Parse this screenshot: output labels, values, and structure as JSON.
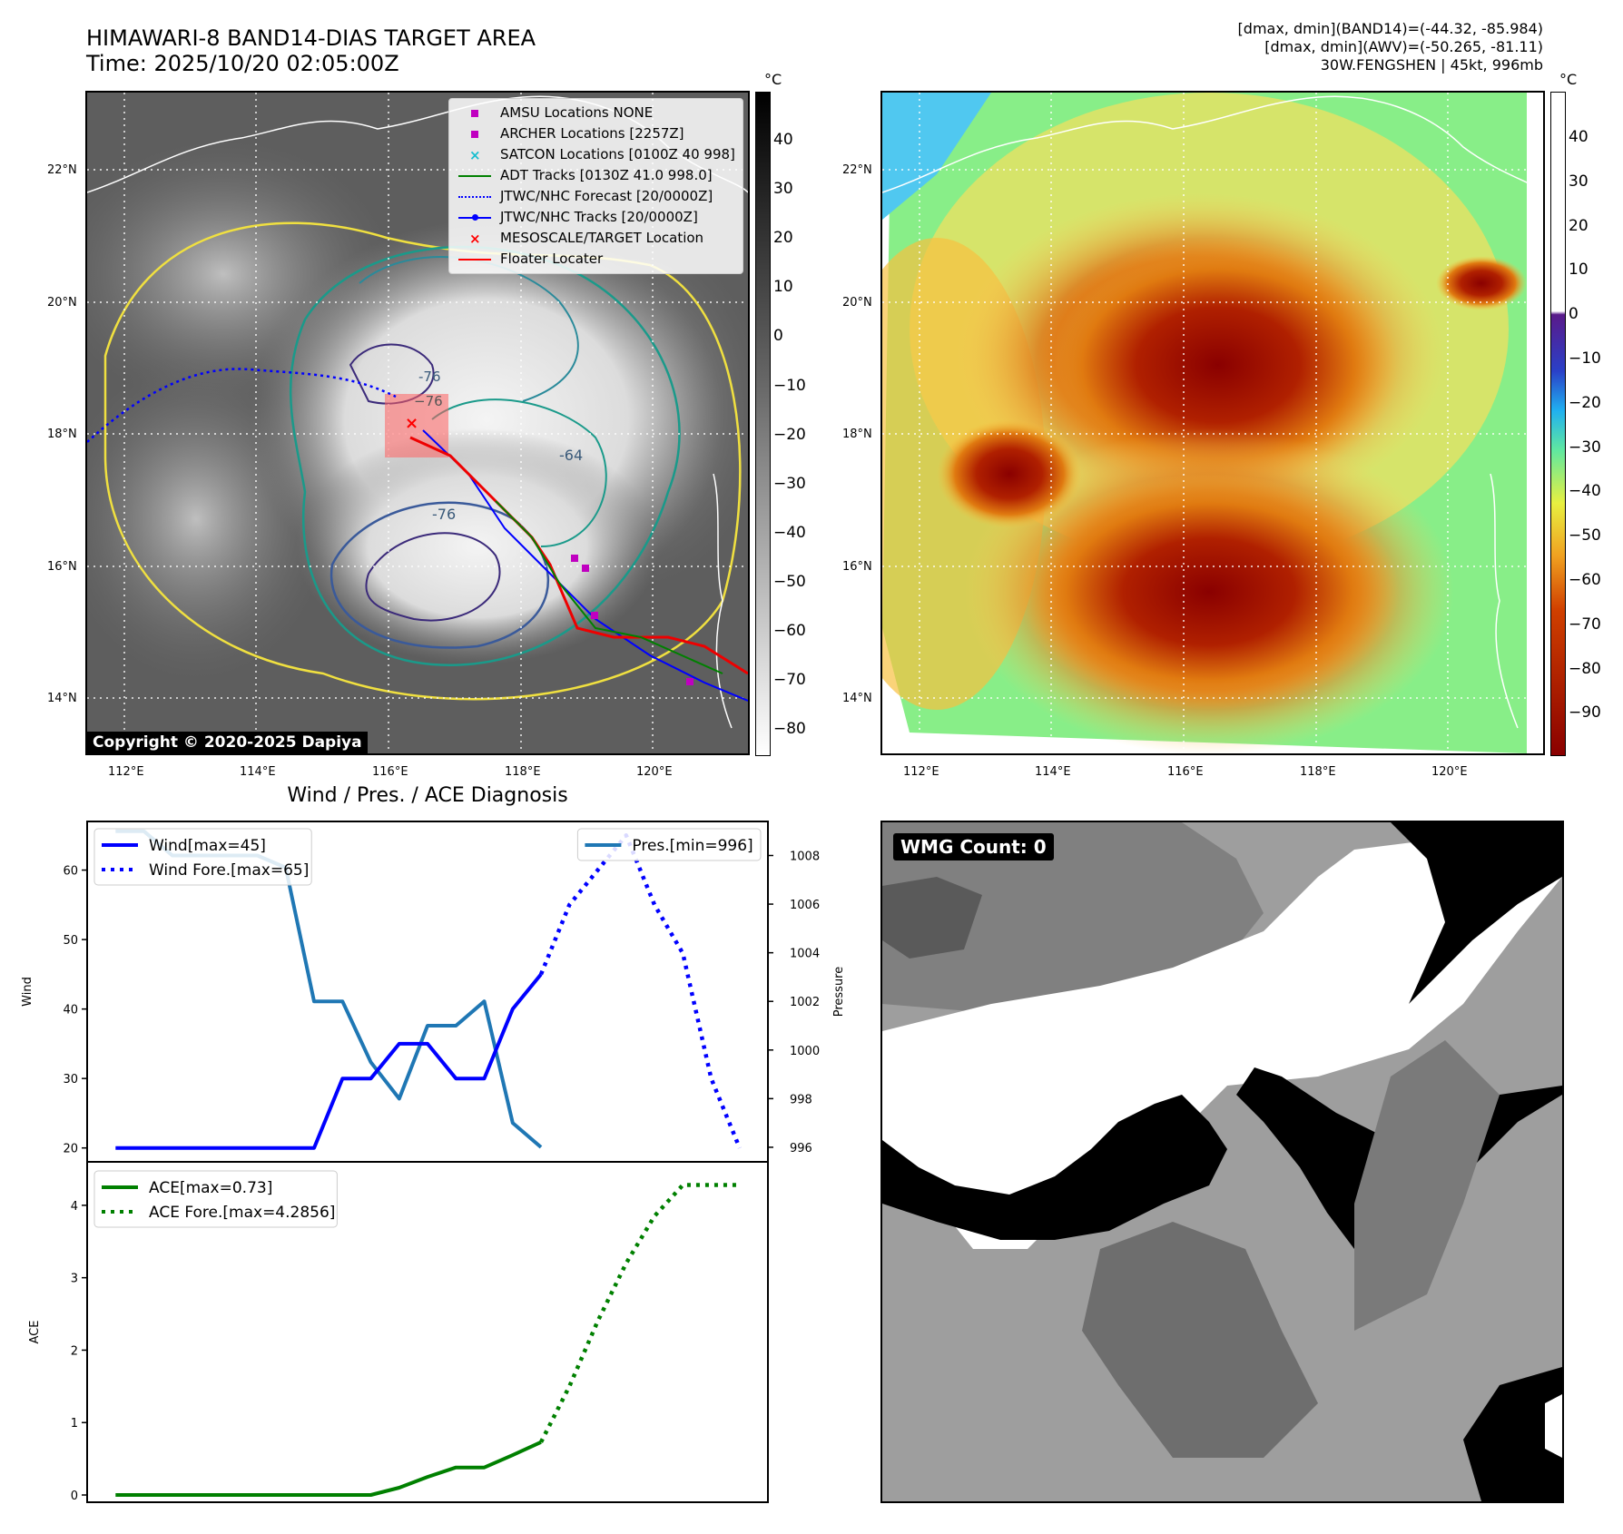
{
  "header": {
    "title_line1": "HIMAWARI-8 BAND14-DIAS TARGET AREA",
    "title_line2": "Time: 2025/10/20 02:05:00Z",
    "info_line1": "[dmax, dmin](BAND14)=(-44.32, -85.984)",
    "info_line2": "[dmax, dmin](AWV)=(-50.265, -81.11)",
    "info_line3": "30W.FENGSHEN | 45kt, 996mb"
  },
  "map_panel": {
    "copyright": "Copyright © 2020-2025 Dapiya",
    "lat_labels": [
      "22°N",
      "20°N",
      "18°N",
      "16°N",
      "14°N"
    ],
    "lon_labels": [
      "112°E",
      "114°E",
      "116°E",
      "118°E",
      "120°E"
    ],
    "contour_labels": [
      "-64",
      "-76",
      "-76"
    ],
    "legend": [
      {
        "label": "AMSU Locations NONE",
        "color": "#c000c0",
        "marker": "square"
      },
      {
        "label": "ARCHER Locations [2257Z]",
        "color": "#c000c0",
        "marker": "square"
      },
      {
        "label": "SATCON Locations [0100Z 40 998]",
        "color": "#17becf",
        "marker": "x"
      },
      {
        "label": "ADT Tracks [0130Z 41.0 998.0]",
        "color": "#008000",
        "marker": "line"
      },
      {
        "label": "JTWC/NHC Forecast [20/0000Z]",
        "color": "#0000ff",
        "marker": "dotted"
      },
      {
        "label": "JTWC/NHC Tracks [20/0000Z]",
        "color": "#0000ff",
        "marker": "line-dot"
      },
      {
        "label": "MESOSCALE/TARGET Location",
        "color": "#ff0000",
        "marker": "x"
      },
      {
        "label": "Floater Locater",
        "color": "#ff0000",
        "marker": "line"
      }
    ],
    "colorbar_unit": "°C",
    "colorbar_ticks": [
      "40",
      "30",
      "20",
      "10",
      "0",
      "−10",
      "−20",
      "−30",
      "−40",
      "−50",
      "−60",
      "−70",
      "−80"
    ]
  },
  "awv_panel": {
    "lat_labels": [
      "22°N",
      "20°N",
      "18°N",
      "16°N",
      "14°N"
    ],
    "lon_labels": [
      "112°E",
      "114°E",
      "116°E",
      "118°E",
      "120°E"
    ],
    "colorbar_unit": "°C",
    "colorbar_ticks": [
      "40",
      "30",
      "20",
      "10",
      "0",
      "−10",
      "−20",
      "−30",
      "−40",
      "−50",
      "−60",
      "−70",
      "−80",
      "−90"
    ]
  },
  "diag_title": "Wind / Pres. / ACE Diagnosis",
  "wmg_label": "WMG Count: 0",
  "colors": {
    "wind": "#0000ff",
    "pressure": "#1f77b4",
    "ace": "#008000"
  },
  "chart_data": [
    {
      "type": "line",
      "ylabel": "Wind",
      "ylabel_right": "Pressure",
      "ylim": [
        18,
        67
      ],
      "ylim_right": [
        995.4,
        1009.4
      ],
      "yticks": [
        20,
        30,
        40,
        50,
        60
      ],
      "yticks_right": [
        996,
        998,
        1000,
        1002,
        1004,
        1006,
        1008
      ],
      "xlim": [
        -1,
        23
      ],
      "series": [
        {
          "name": "Wind[max=45]",
          "axis": "left",
          "style": "solid",
          "x": [
            0,
            1,
            2,
            3,
            4,
            5,
            6,
            7,
            8,
            9,
            10,
            11,
            12,
            13,
            14,
            15
          ],
          "values": [
            20,
            20,
            20,
            20,
            20,
            20,
            20,
            20,
            30,
            30,
            35,
            35,
            30,
            30,
            40,
            45
          ]
        },
        {
          "name": "Wind Fore.[max=65]",
          "axis": "left",
          "style": "dotted",
          "x": [
            15,
            16,
            17,
            18,
            19,
            20,
            21,
            22
          ],
          "values": [
            45,
            55,
            60,
            65,
            55,
            48,
            30,
            20
          ]
        },
        {
          "name": "Pres.[min=996]",
          "axis": "right",
          "style": "solid",
          "x": [
            0,
            1,
            2,
            3,
            4,
            5,
            6,
            7,
            8,
            9,
            10,
            11,
            12,
            13,
            14,
            15
          ],
          "values": [
            1009,
            1009,
            1008,
            1008,
            1008,
            1008,
            1007.5,
            1002,
            1002,
            999.5,
            998,
            1001,
            1001,
            1002,
            997,
            996
          ]
        }
      ]
    },
    {
      "type": "line",
      "ylabel": "ACE",
      "ylim": [
        -0.1,
        4.6
      ],
      "yticks": [
        0,
        1,
        2,
        3,
        4
      ],
      "xlim": [
        -1,
        23
      ],
      "series": [
        {
          "name": "ACE[max=0.73]",
          "style": "solid",
          "x": [
            0,
            1,
            2,
            3,
            4,
            5,
            6,
            7,
            8,
            9,
            10,
            11,
            12,
            13,
            14,
            15
          ],
          "values": [
            0,
            0,
            0,
            0,
            0,
            0,
            0,
            0,
            0,
            0,
            0.1,
            0.25,
            0.38,
            0.38,
            0.55,
            0.73
          ]
        },
        {
          "name": "ACE Fore.[max=4.2856]",
          "style": "dotted",
          "x": [
            15,
            16,
            17,
            18,
            19,
            20,
            21,
            22
          ],
          "values": [
            0.73,
            1.5,
            2.4,
            3.2,
            3.85,
            4.28,
            4.28,
            4.28
          ]
        }
      ]
    }
  ]
}
